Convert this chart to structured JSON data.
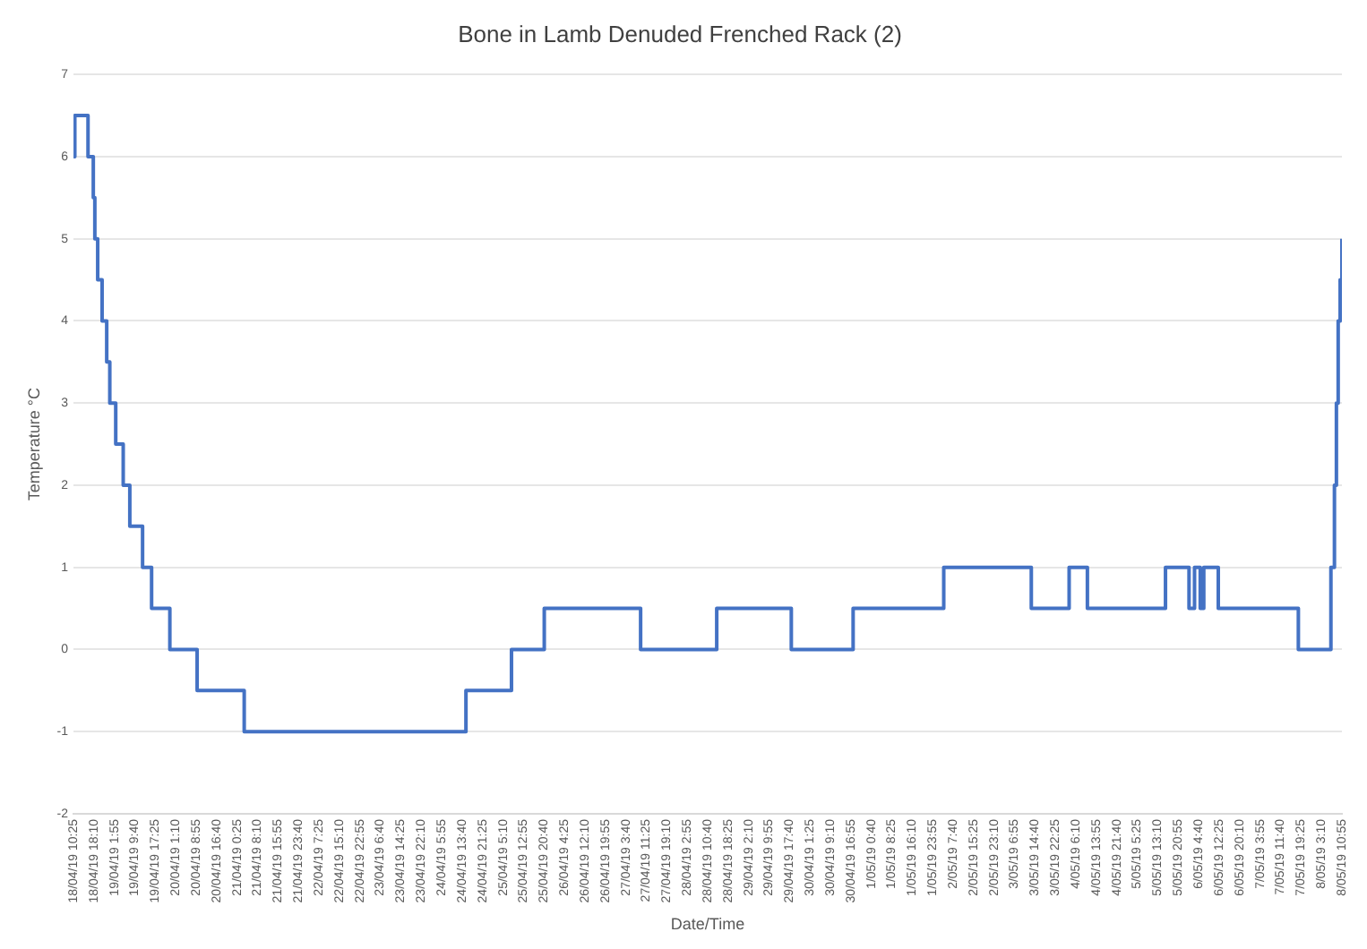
{
  "chart_data": {
    "type": "step",
    "title": "Bone in Lamb Denuded Frenched Rack (2)",
    "xlabel": "Date/Time",
    "ylabel": "Temperature °C",
    "x": [
      "--04-18T10:25",
      "--04-18T10:55",
      "--04-18T15:55",
      "--04-18T17:55",
      "--04-18T18:30",
      "--04-18T19:35",
      "--04-18T21:15",
      "--04-18T23:00",
      "--04-19T00:10",
      "--04-19T02:25",
      "--04-19T05:15",
      "--04-19T07:45",
      "--04-19T12:35",
      "--04-19T16:00",
      "--04-19T22:55",
      "--04-20T09:15",
      "--04-21T03:05",
      "--04-24T15:05",
      "--04-25T08:20",
      "--04-25T20:45",
      "--04-27T09:15",
      "--04-28T14:05",
      "--04-29T18:20",
      "--04-30T17:45",
      "--05-02T04:05",
      "--05-03T13:15",
      "--05-04T03:35",
      "--05-04T10:30",
      "--05-05T16:05",
      "--05-06T01:00",
      "--05-06T03:05",
      "--05-06T05:15",
      "--05-06T06:35",
      "--05-06T12:05",
      "--05-07T18:25",
      "--05-08T06:45",
      "--05-08T08:05",
      "--05-08T08:50",
      "--05-08T09:30",
      "--05-08T10:15",
      "--05-08T10:55"
    ],
    "series": [
      {
        "color": "#4472c4",
        "values": [
          6,
          6.5,
          6,
          5.5,
          5,
          4.5,
          4,
          3.5,
          3,
          2.5,
          2,
          1.5,
          1,
          0.5,
          0,
          -0.5,
          -1,
          -0.5,
          0,
          0.5,
          0,
          0.5,
          0,
          0.5,
          1,
          0.5,
          1,
          0.5,
          1,
          0.5,
          1,
          0.5,
          1,
          0.5,
          0,
          1,
          2,
          3,
          4,
          4.5,
          5
        ]
      }
    ],
    "xlim": [
      "--04-18T10:25",
      "--05-08T10:55"
    ],
    "xticks": [
      {
        "value": "--04-18T10:25",
        "label": "18/04/19 10:25"
      },
      {
        "value": "--04-18T18:10",
        "label": "18/04/19 18:10"
      },
      {
        "value": "--04-19T01:55",
        "label": "19/04/19 1:55"
      },
      {
        "value": "--04-19T09:40",
        "label": "19/04/19 9:40"
      },
      {
        "value": "--04-19T17:25",
        "label": "19/04/19 17:25"
      },
      {
        "value": "--04-20T01:10",
        "label": "20/04/19 1:10"
      },
      {
        "value": "--04-20T08:55",
        "label": "20/04/19 8:55"
      },
      {
        "value": "--04-20T16:40",
        "label": "20/04/19 16:40"
      },
      {
        "value": "--04-21T00:25",
        "label": "21/04/19 0:25"
      },
      {
        "value": "--04-21T08:10",
        "label": "21/04/19 8:10"
      },
      {
        "value": "--04-21T15:55",
        "label": "21/04/19 15:55"
      },
      {
        "value": "--04-21T23:40",
        "label": "21/04/19 23:40"
      },
      {
        "value": "--04-22T07:25",
        "label": "22/04/19 7:25"
      },
      {
        "value": "--04-22T15:10",
        "label": "22/04/19 15:10"
      },
      {
        "value": "--04-22T22:55",
        "label": "22/04/19 22:55"
      },
      {
        "value": "--04-23T06:40",
        "label": "23/04/19 6:40"
      },
      {
        "value": "--04-23T14:25",
        "label": "23/04/19 14:25"
      },
      {
        "value": "--04-23T22:10",
        "label": "23/04/19 22:10"
      },
      {
        "value": "--04-24T05:55",
        "label": "24/04/19 5:55"
      },
      {
        "value": "--04-24T13:40",
        "label": "24/04/19 13:40"
      },
      {
        "value": "--04-24T21:25",
        "label": "24/04/19 21:25"
      },
      {
        "value": "--04-25T05:10",
        "label": "25/04/19 5:10"
      },
      {
        "value": "--04-25T12:55",
        "label": "25/04/19 12:55"
      },
      {
        "value": "--04-25T20:40",
        "label": "25/04/19 20:40"
      },
      {
        "value": "--04-26T04:25",
        "label": "26/04/19 4:25"
      },
      {
        "value": "--04-26T12:10",
        "label": "26/04/19 12:10"
      },
      {
        "value": "--04-26T19:55",
        "label": "26/04/19 19:55"
      },
      {
        "value": "--04-27T03:40",
        "label": "27/04/19 3:40"
      },
      {
        "value": "--04-27T11:25",
        "label": "27/04/19 11:25"
      },
      {
        "value": "--04-27T19:10",
        "label": "27/04/19 19:10"
      },
      {
        "value": "--04-28T02:55",
        "label": "28/04/19 2:55"
      },
      {
        "value": "--04-28T10:40",
        "label": "28/04/19 10:40"
      },
      {
        "value": "--04-28T18:25",
        "label": "28/04/19 18:25"
      },
      {
        "value": "--04-29T02:10",
        "label": "29/04/19 2:10"
      },
      {
        "value": "--04-29T09:55",
        "label": "29/04/19 9:55"
      },
      {
        "value": "--04-29T17:40",
        "label": "29/04/19 17:40"
      },
      {
        "value": "--04-30T01:25",
        "label": "30/04/19 1:25"
      },
      {
        "value": "--04-30T09:10",
        "label": "30/04/19 9:10"
      },
      {
        "value": "--04-30T16:55",
        "label": "30/04/19 16:55"
      },
      {
        "value": "--05-01T00:40",
        "label": "1/05/19 0:40"
      },
      {
        "value": "--05-01T08:25",
        "label": "1/05/19 8:25"
      },
      {
        "value": "--05-01T16:10",
        "label": "1/05/19 16:10"
      },
      {
        "value": "--05-01T23:55",
        "label": "1/05/19 23:55"
      },
      {
        "value": "--05-02T07:40",
        "label": "2/05/19 7:40"
      },
      {
        "value": "--05-02T15:25",
        "label": "2/05/19 15:25"
      },
      {
        "value": "--05-02T23:10",
        "label": "2/05/19 23:10"
      },
      {
        "value": "--05-03T06:55",
        "label": "3/05/19 6:55"
      },
      {
        "value": "--05-03T14:40",
        "label": "3/05/19 14:40"
      },
      {
        "value": "--05-03T22:25",
        "label": "3/05/19 22:25"
      },
      {
        "value": "--05-04T06:10",
        "label": "4/05/19 6:10"
      },
      {
        "value": "--05-04T13:55",
        "label": "4/05/19 13:55"
      },
      {
        "value": "--05-04T21:40",
        "label": "4/05/19 21:40"
      },
      {
        "value": "--05-05T05:25",
        "label": "5/05/19 5:25"
      },
      {
        "value": "--05-05T13:10",
        "label": "5/05/19 13:10"
      },
      {
        "value": "--05-05T20:55",
        "label": "5/05/19 20:55"
      },
      {
        "value": "--05-06T04:40",
        "label": "6/05/19 4:40"
      },
      {
        "value": "--05-06T12:25",
        "label": "6/05/19 12:25"
      },
      {
        "value": "--05-06T20:10",
        "label": "6/05/19 20:10"
      },
      {
        "value": "--05-07T03:55",
        "label": "7/05/19 3:55"
      },
      {
        "value": "--05-07T11:40",
        "label": "7/05/19 11:40"
      },
      {
        "value": "--05-07T19:25",
        "label": "7/05/19 19:25"
      },
      {
        "value": "--05-08T03:10",
        "label": "8/05/19 3:10"
      },
      {
        "value": "--05-08T10:55",
        "label": "8/05/19 10:55"
      }
    ],
    "ylim": [
      -2,
      7
    ],
    "yticks": [
      -2,
      -1,
      0,
      1,
      2,
      3,
      4,
      5,
      6,
      7
    ],
    "grid": "y",
    "legend": false
  }
}
